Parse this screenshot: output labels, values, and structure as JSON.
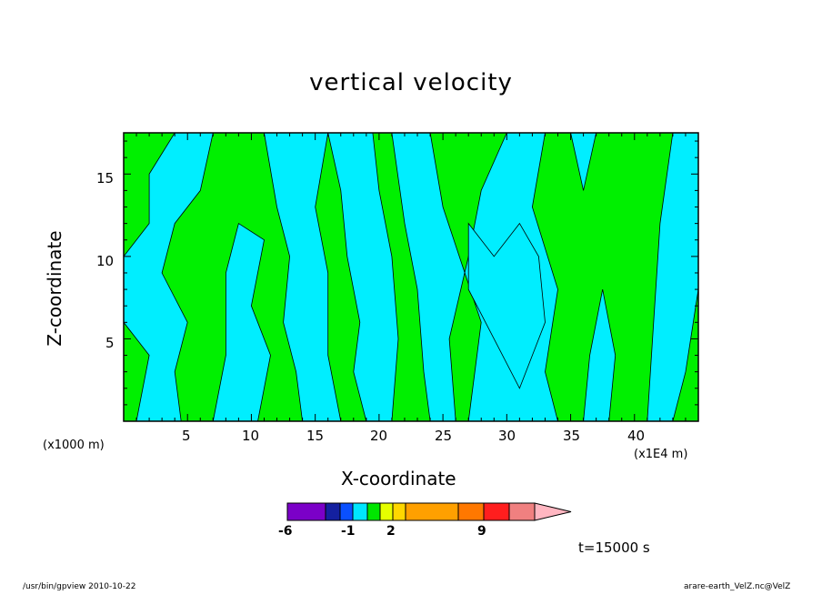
{
  "chart_data": {
    "type": "heatmap",
    "title": "vertical velocity",
    "xlabel": "X-coordinate",
    "ylabel": "Z-coordinate",
    "x_unit_left": "(x1000 m)",
    "x_unit_right": "(x1E4 m)",
    "xlim": [
      0,
      45
    ],
    "ylim": [
      0,
      17.5
    ],
    "x_ticks": [
      "5",
      "10",
      "15",
      "20",
      "25",
      "30",
      "35",
      "40"
    ],
    "y_ticks": [
      "5",
      "10",
      "15"
    ],
    "colorbar": {
      "tick_labels": [
        "-6",
        "-1",
        "2",
        "9"
      ],
      "colors": [
        "#7b00c8",
        "#1420a0",
        "#0a50ff",
        "#00e6ff",
        "#00e600",
        "#e6ff00",
        "#ffd700",
        "#ffa000",
        "#ff7800",
        "#ff1e1e",
        "#f08080",
        "#ffb6c1"
      ]
    },
    "field_colors": {
      "positive": "#00f000",
      "negative": "#00eeff"
    },
    "time_label": "t=15000 s"
  },
  "footer": {
    "left": "/usr/bin/gpview   2010-10-22",
    "right": "arare-earth_VelZ.nc@VelZ"
  }
}
